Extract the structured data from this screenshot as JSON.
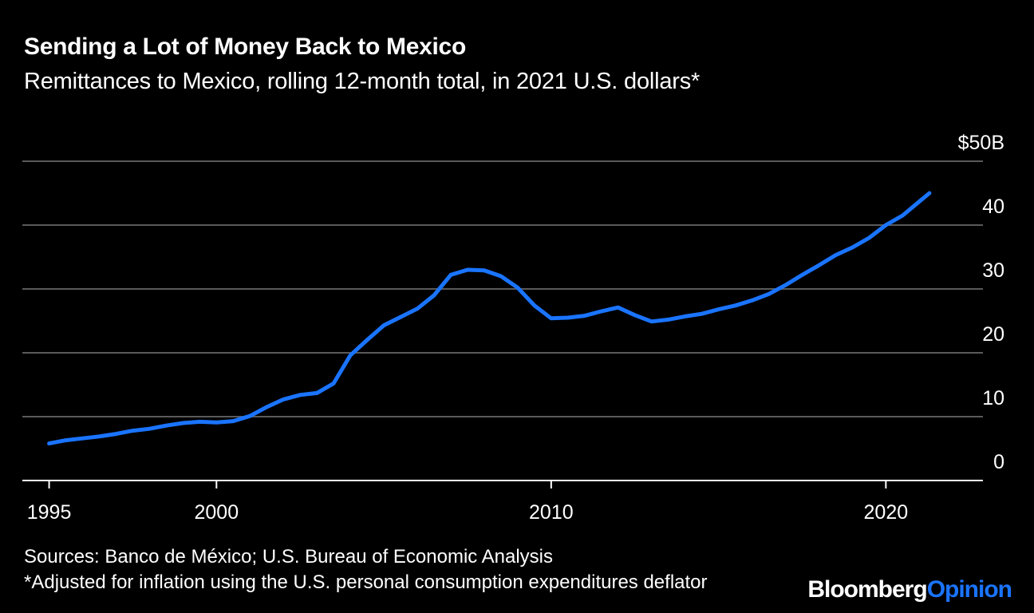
{
  "colors": {
    "background": "#000000",
    "text": "#ffffff",
    "gridline": "#5a5a5a",
    "axis": "#ffffff",
    "series": "#1a74ff",
    "brand_accent": "#1a74ff"
  },
  "chart_data": {
    "type": "line",
    "title": "Sending a Lot of Money Back to Mexico",
    "subtitle": "Remittances to Mexico, rolling 12-month total, in 2021 U.S. dollars*",
    "xlabel": "",
    "ylabel": "",
    "xlim": [
      1994.2,
      2022.9
    ],
    "ylim": [
      0,
      50
    ],
    "x_ticks": [
      1995,
      2000,
      2010,
      2020
    ],
    "x_tick_labels": [
      "1995",
      "2000",
      "2010",
      "2020"
    ],
    "y_ticks": [
      0,
      10,
      20,
      30,
      40,
      50
    ],
    "y_tick_labels": [
      "0",
      "10",
      "20",
      "30",
      "40",
      "$50B"
    ],
    "grid": true,
    "legend": "none",
    "series": [
      {
        "x": [
          1995.0,
          1995.5,
          1996.0,
          1996.5,
          1997.0,
          1997.5,
          1998.0,
          1998.5,
          1999.0,
          1999.5,
          2000.0,
          2000.5,
          2001.0,
          2001.5,
          2002.0,
          2002.5,
          2003.0,
          2003.5,
          2004.0,
          2004.5,
          2005.0,
          2005.5,
          2006.0,
          2006.5,
          2007.0,
          2007.5,
          2008.0,
          2008.5,
          2009.0,
          2009.5,
          2010.0,
          2010.5,
          2011.0,
          2011.5,
          2012.0,
          2012.5,
          2013.0,
          2013.5,
          2014.0,
          2014.5,
          2015.0,
          2015.5,
          2016.0,
          2016.5,
          2017.0,
          2017.5,
          2018.0,
          2018.5,
          2019.0,
          2019.5,
          2020.0,
          2020.5,
          2021.0,
          2021.3
        ],
        "values": [
          5.8,
          6.3,
          6.6,
          6.9,
          7.3,
          7.8,
          8.1,
          8.6,
          9.0,
          9.2,
          9.1,
          9.3,
          10.1,
          11.5,
          12.7,
          13.4,
          13.7,
          15.2,
          19.6,
          22.0,
          24.3,
          25.6,
          26.9,
          29.0,
          32.2,
          33.0,
          32.9,
          32.0,
          30.2,
          27.4,
          25.4,
          25.5,
          25.8,
          26.5,
          27.1,
          25.9,
          24.9,
          25.2,
          25.7,
          26.1,
          26.8,
          27.4,
          28.2,
          29.2,
          30.6,
          32.2,
          33.7,
          35.3,
          36.5,
          38.0,
          40.0,
          41.5,
          43.7,
          45.0
        ]
      }
    ]
  },
  "footer": {
    "sources": "Sources: Banco de México; U.S. Bureau of Economic Analysis",
    "note": "*Adjusted for inflation using the U.S. personal consumption expenditures deflator"
  },
  "brand": {
    "part1": "Bloomberg",
    "part2": "Opinion"
  }
}
